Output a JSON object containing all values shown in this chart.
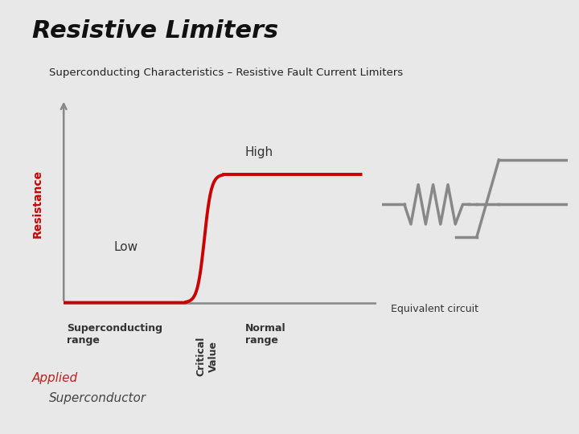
{
  "title": "Resistive Limiters",
  "subtitle": "Superconducting Characteristics – Resistive Fault Current Limiters",
  "bg_color": "#e8e8e8",
  "title_color": "#111111",
  "subtitle_color": "#222222",
  "curve_color": "#cc0000",
  "axis_color": "#888888",
  "label_color": "#333333",
  "resistance_label_color": "#cc0000",
  "ylabel": "Resistance",
  "low_label": "Low",
  "high_label": "High",
  "superconducting_label": "Superconducting\nrange",
  "normal_label": "Normal\nrange",
  "critical_label": "Critical\nValue",
  "equivalent_label": "Equivalent circuit",
  "logo_text1": "Applied",
  "logo_text2": "Superconductor"
}
